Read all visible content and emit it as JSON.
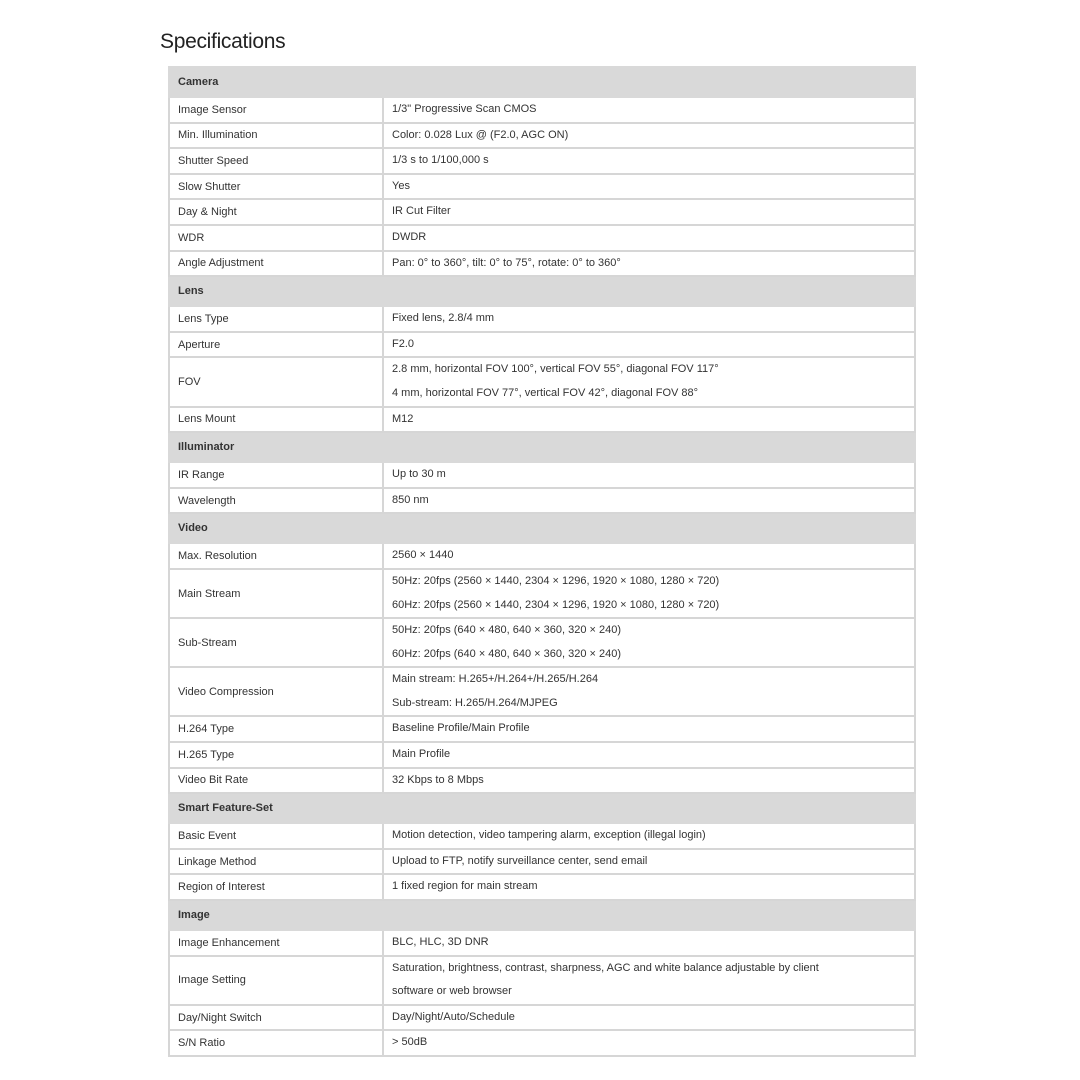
{
  "title": "Specifications",
  "sections": [
    {
      "name": "Camera",
      "rows": [
        {
          "label": "Image Sensor",
          "values": [
            "1/3\" Progressive Scan CMOS"
          ]
        },
        {
          "label": "Min. Illumination",
          "values": [
            "Color: 0.028 Lux @ (F2.0, AGC ON)"
          ]
        },
        {
          "label": "Shutter Speed",
          "values": [
            "1/3 s to 1/100,000 s"
          ]
        },
        {
          "label": "Slow Shutter",
          "values": [
            "Yes"
          ]
        },
        {
          "label": "Day & Night",
          "values": [
            "IR Cut Filter"
          ]
        },
        {
          "label": "WDR",
          "values": [
            "DWDR"
          ]
        },
        {
          "label": "Angle Adjustment",
          "values": [
            "Pan: 0° to 360°, tilt: 0° to 75°, rotate: 0° to 360°"
          ]
        }
      ]
    },
    {
      "name": "Lens",
      "rows": [
        {
          "label": "Lens Type",
          "values": [
            "Fixed lens, 2.8/4 mm"
          ]
        },
        {
          "label": "Aperture",
          "values": [
            "F2.0"
          ]
        },
        {
          "label": "FOV",
          "values": [
            "2.8 mm, horizontal FOV 100°, vertical FOV 55°, diagonal FOV 117°",
            "4 mm, horizontal FOV 77°, vertical FOV 42°, diagonal FOV 88°"
          ]
        },
        {
          "label": "Lens Mount",
          "values": [
            "M12"
          ]
        }
      ]
    },
    {
      "name": "Illuminator",
      "rows": [
        {
          "label": "IR Range",
          "values": [
            "Up to 30 m"
          ]
        },
        {
          "label": "Wavelength",
          "values": [
            "850 nm"
          ]
        }
      ]
    },
    {
      "name": "Video",
      "rows": [
        {
          "label": "Max. Resolution",
          "values": [
            "2560 × 1440"
          ]
        },
        {
          "label": "Main Stream",
          "values": [
            "50Hz: 20fps (2560 × 1440, 2304 × 1296, 1920 × 1080, 1280 × 720)",
            "60Hz: 20fps (2560 × 1440, 2304 × 1296, 1920 × 1080, 1280 × 720)"
          ]
        },
        {
          "label": "Sub-Stream",
          "values": [
            "50Hz: 20fps (640 × 480, 640 × 360, 320 × 240)",
            "60Hz: 20fps (640 × 480, 640 × 360, 320 × 240)"
          ]
        },
        {
          "label": "Video Compression",
          "values": [
            "Main stream: H.265+/H.264+/H.265/H.264",
            "Sub-stream: H.265/H.264/MJPEG"
          ]
        },
        {
          "label": "H.264 Type",
          "values": [
            "Baseline Profile/Main Profile"
          ]
        },
        {
          "label": "H.265 Type",
          "values": [
            "Main Profile"
          ]
        },
        {
          "label": "Video Bit Rate",
          "values": [
            "32 Kbps to 8 Mbps"
          ]
        }
      ]
    },
    {
      "name": "Smart Feature-Set",
      "rows": [
        {
          "label": "Basic Event",
          "values": [
            "Motion detection, video tampering alarm, exception (illegal login)"
          ]
        },
        {
          "label": "Linkage Method",
          "values": [
            "Upload to FTP, notify surveillance center, send email"
          ]
        },
        {
          "label": "Region of Interest",
          "values": [
            "1 fixed region for main stream"
          ]
        }
      ]
    },
    {
      "name": "Image",
      "rows": [
        {
          "label": "Image Enhancement",
          "values": [
            "BLC, HLC, 3D DNR"
          ]
        },
        {
          "label": "Image Setting",
          "values": [
            "Saturation, brightness, contrast, sharpness, AGC and white balance adjustable by client",
            "software or web browser"
          ]
        },
        {
          "label": "Day/Night Switch",
          "values": [
            "Day/Night/Auto/Schedule"
          ]
        },
        {
          "label": "S/N Ratio",
          "values": [
            "> 50dB"
          ]
        }
      ]
    }
  ]
}
